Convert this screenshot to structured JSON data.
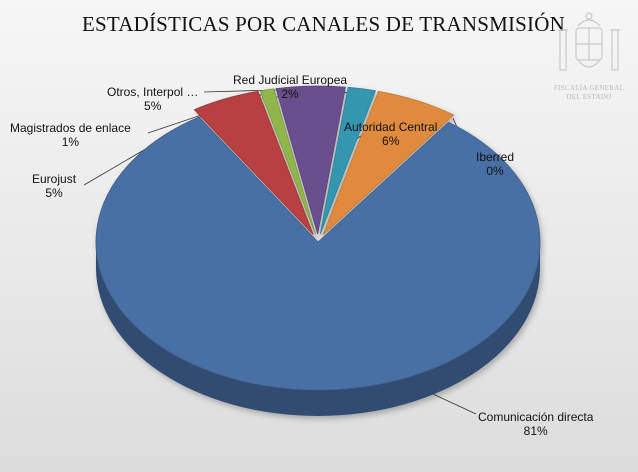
{
  "chart_data": {
    "type": "pie",
    "title": "ESTADÍSTICAS POR CANALES DE TRANSMISIÓN",
    "slices": [
      {
        "name": "Comunicación directa",
        "value": 81,
        "label": "81%",
        "color": "#4a6fa5"
      },
      {
        "name": "Eurojust",
        "value": 5,
        "label": "5%",
        "color": "#b8413f"
      },
      {
        "name": "Magistrados de enlace",
        "value": 1,
        "label": "1%",
        "color": "#90b64c"
      },
      {
        "name": "Otros, Interpol …",
        "value": 5,
        "label": "5%",
        "color": "#6a4f8f"
      },
      {
        "name": "Red Judicial Europea",
        "value": 2,
        "label": "2%",
        "color": "#3596b0"
      },
      {
        "name": "Autoridad Central",
        "value": 6,
        "label": "6%",
        "color": "#e08a3c"
      },
      {
        "name": "Iberred",
        "value": 0,
        "label": "0%",
        "color": "#4a6fa5"
      }
    ]
  },
  "emblem": {
    "name": "coat-of-arms",
    "line1": "FISCALÍA GENERAL",
    "line2": "DEL ESTADO"
  }
}
